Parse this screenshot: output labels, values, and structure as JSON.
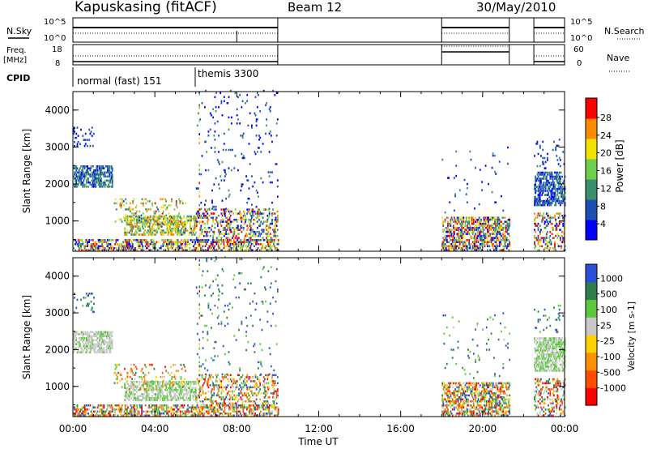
{
  "header": {
    "station": "Kapuskasing (fitACF)",
    "beam": "Beam 12",
    "date": "30/May/2010"
  },
  "status_panels": {
    "nsky_label": "N.Sky",
    "nsky_ticks": [
      "10^5",
      "10^0"
    ],
    "nsearch_label": "N.Search",
    "nsearch_ticks": [
      "10^5",
      "10^0"
    ],
    "freq_label_1": "Freq.",
    "freq_label_2": "[MHz]",
    "freq_ticks": [
      "18",
      "8"
    ],
    "nave_label": "Nave",
    "nave_ticks": [
      "60",
      "0"
    ],
    "cpid_label": "CPID",
    "cpid_modes": [
      {
        "name": "normal (fast) 151",
        "start_hour": 0.0
      },
      {
        "name": "themis 3300",
        "start_hour": 6.0
      }
    ]
  },
  "chart_data": [
    {
      "type": "heatmap",
      "panel": "power",
      "ylabel": "Slant Range [km]",
      "xlabel": "",
      "xlim_hours": [
        0,
        24
      ],
      "ylim": [
        180,
        4500
      ],
      "yticks": [
        "1000",
        "2000",
        "3000",
        "4000"
      ],
      "colorbar_label": "Power [dB]",
      "colorbar_ticks": [
        "4",
        "8",
        "12",
        "16",
        "20",
        "24",
        "28"
      ],
      "colorbar_range": [
        0,
        30
      ],
      "colors": [
        "#0000ff",
        "#1c4fb4",
        "#3a8f6e",
        "#6fcf4d",
        "#f2e200",
        "#ff8c00",
        "#ff0000"
      ],
      "data_gaps_hours": [
        [
          10.0,
          18.0
        ],
        [
          21.3,
          22.5
        ]
      ]
    },
    {
      "type": "heatmap",
      "panel": "velocity",
      "ylabel": "Slant Range [km]",
      "xlabel": "Time UT",
      "xlim_hours": [
        0,
        24
      ],
      "ylim": [
        180,
        4500
      ],
      "yticks": [
        "1000",
        "2000",
        "3000",
        "4000"
      ],
      "xticks": [
        "00:00",
        "04:00",
        "08:00",
        "12:00",
        "16:00",
        "20:00",
        "00:00"
      ],
      "colorbar_label": "Velocity [m s-1]",
      "colorbar_ticks": [
        "1000",
        "500",
        "100",
        "25",
        "-25",
        "-100",
        "-500",
        "-1000"
      ],
      "colorbar_range": [
        -1000,
        1000
      ],
      "colors": [
        "#2b4fd8",
        "#2e7d4d",
        "#5cc83c",
        "#c8c8c8",
        "#ffd000",
        "#ff9000",
        "#ff4c00",
        "#ff0000"
      ],
      "data_gaps_hours": [
        [
          10.0,
          18.0
        ],
        [
          21.3,
          22.5
        ]
      ]
    }
  ]
}
